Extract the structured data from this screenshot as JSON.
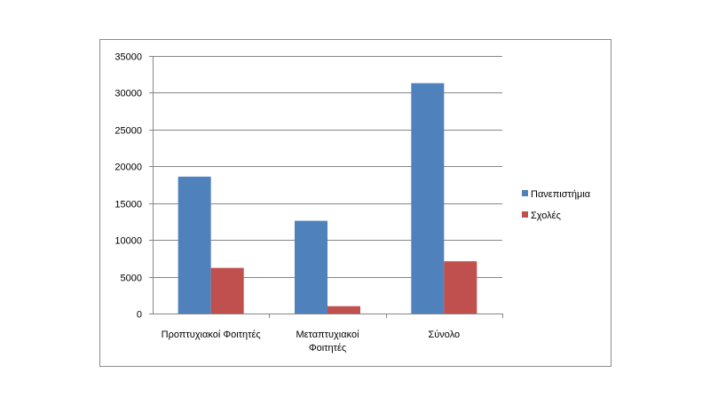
{
  "chart_data": {
    "type": "bar",
    "categories": [
      [
        "Προπτυχιακοί Φοιτητές"
      ],
      [
        "Μεταπτυχιακοί",
        "Φοιτητές"
      ],
      [
        "Σύνολο"
      ]
    ],
    "series": [
      {
        "name": "Πανεπιστήμια",
        "color": "#4f81bd",
        "values": [
          18600,
          12600,
          31300
        ]
      },
      {
        "name": "Σχολές",
        "color": "#c0504d",
        "values": [
          6200,
          1000,
          7100
        ]
      }
    ],
    "ylim": [
      0,
      35000
    ],
    "yticks": [
      0,
      5000,
      10000,
      15000,
      20000,
      25000,
      30000,
      35000
    ],
    "grid": true,
    "legend_position": "right"
  }
}
